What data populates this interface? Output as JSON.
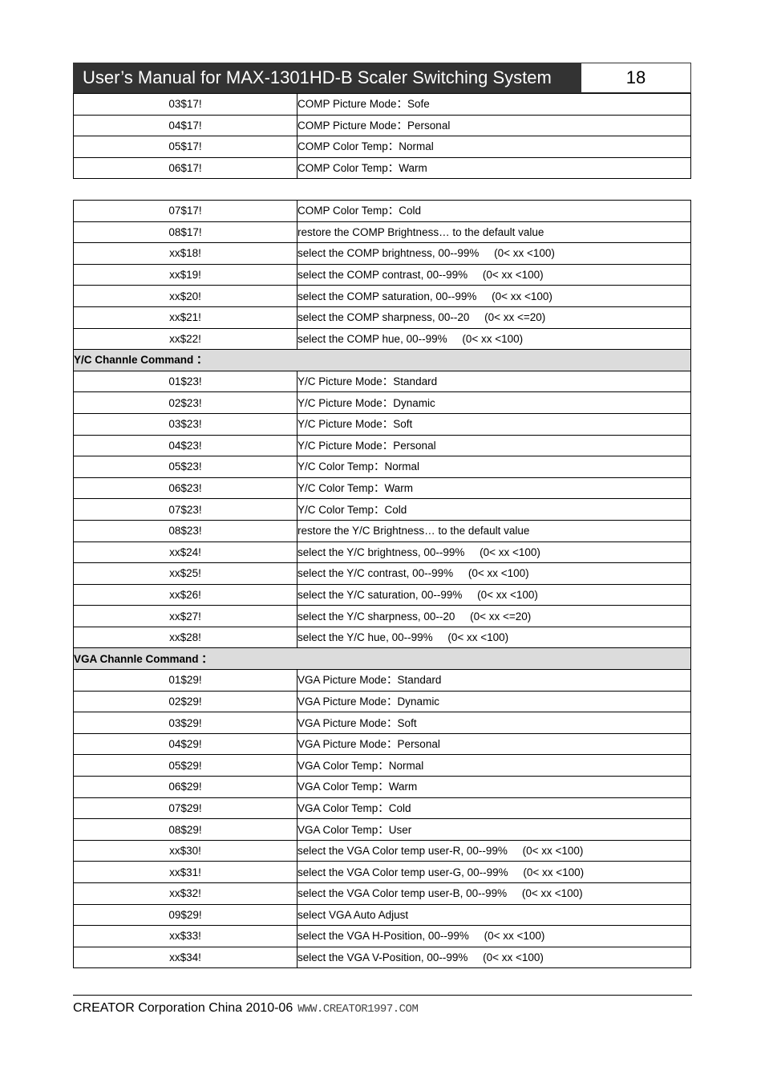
{
  "header": {
    "title": "User’s Manual for MAX-1301HD-B Scaler Switching System",
    "page_number": "18"
  },
  "table1": [
    {
      "code": "03$17!",
      "desc": "COMP Picture Mode：Sofe"
    },
    {
      "code": "04$17!",
      "desc": "COMP Picture Mode：Personal"
    },
    {
      "code": "05$17!",
      "desc": "COMP Color Temp：Normal"
    },
    {
      "code": "06$17!",
      "desc": "COMP Color Temp：Warm"
    }
  ],
  "table2": [
    {
      "code": "07$17!",
      "desc": "COMP Color Temp：Cold"
    },
    {
      "code": "08$17!",
      "desc": "restore the COMP Brightness… to the default value"
    },
    {
      "code": "xx$18!",
      "desc": "select the COMP brightness, 00--99%     (0< xx <100)"
    },
    {
      "code": "xx$19!",
      "desc": "select the COMP contrast, 00--99%     (0< xx <100)"
    },
    {
      "code": "xx$20!",
      "desc": "select the COMP saturation, 00--99%     (0< xx <100)"
    },
    {
      "code": "xx$21!",
      "desc": "select the COMP sharpness, 00--20     (0< xx <=20)"
    },
    {
      "code": "xx$22!",
      "desc": "select the COMP hue, 00--99%     (0< xx <100)"
    },
    {
      "section": "Y/C Channle Command ："
    },
    {
      "code": "01$23!",
      "desc": "Y/C Picture Mode：Standard"
    },
    {
      "code": "02$23!",
      "desc": "Y/C Picture Mode：Dynamic"
    },
    {
      "code": "03$23!",
      "desc": "Y/C Picture Mode：Soft"
    },
    {
      "code": "04$23!",
      "desc": "Y/C Picture Mode：Personal"
    },
    {
      "code": "05$23!",
      "desc": "Y/C Color Temp：Normal"
    },
    {
      "code": "06$23!",
      "desc": "Y/C Color Temp：Warm"
    },
    {
      "code": "07$23!",
      "desc": "Y/C Color Temp：Cold"
    },
    {
      "code": "08$23!",
      "desc": "restore the Y/C Brightness… to the default value"
    },
    {
      "code": "xx$24!",
      "desc": "select the Y/C brightness, 00--99%     (0< xx <100)"
    },
    {
      "code": "xx$25!",
      "desc": "select the Y/C contrast, 00--99%     (0< xx <100)"
    },
    {
      "code": "xx$26!",
      "desc": "select the Y/C saturation, 00--99%     (0< xx <100)"
    },
    {
      "code": "xx$27!",
      "desc": "select the Y/C sharpness, 00--20     (0< xx <=20)"
    },
    {
      "code": "xx$28!",
      "desc": "select the Y/C hue, 00--99%     (0< xx <100)"
    },
    {
      "section": "VGA Channle Command ："
    },
    {
      "code": "01$29!",
      "desc": "VGA Picture Mode：Standard"
    },
    {
      "code": "02$29!",
      "desc": "VGA Picture Mode：Dynamic"
    },
    {
      "code": "03$29!",
      "desc": "VGA Picture Mode：Soft"
    },
    {
      "code": "04$29!",
      "desc": "VGA Picture Mode：Personal"
    },
    {
      "code": "05$29!",
      "desc": "VGA Color Temp：Normal"
    },
    {
      "code": "06$29!",
      "desc": "VGA Color Temp：Warm"
    },
    {
      "code": "07$29!",
      "desc": "VGA Color Temp：Cold"
    },
    {
      "code": "08$29!",
      "desc": "VGA Color Temp：User"
    },
    {
      "code": "xx$30!",
      "desc": "select the VGA Color temp user-R, 00--99%     (0< xx <100)"
    },
    {
      "code": "xx$31!",
      "desc": "select the VGA Color temp user-G, 00--99%     (0< xx <100)"
    },
    {
      "code": "xx$32!",
      "desc": "select the VGA Color temp user-B, 00--99%     (0< xx <100)"
    },
    {
      "code": "09$29!",
      "desc": "select VGA Auto Adjust"
    },
    {
      "code": "xx$33!",
      "desc": "select the VGA H-Position, 00--99%     (0< xx <100)"
    },
    {
      "code": "xx$34!",
      "desc": "select the VGA V-Position, 00--99%     (0< xx <100)"
    }
  ],
  "footer": {
    "text": "CREATOR Corporation China 2010-06",
    "website": "WWW.CREATOR1997.COM"
  }
}
